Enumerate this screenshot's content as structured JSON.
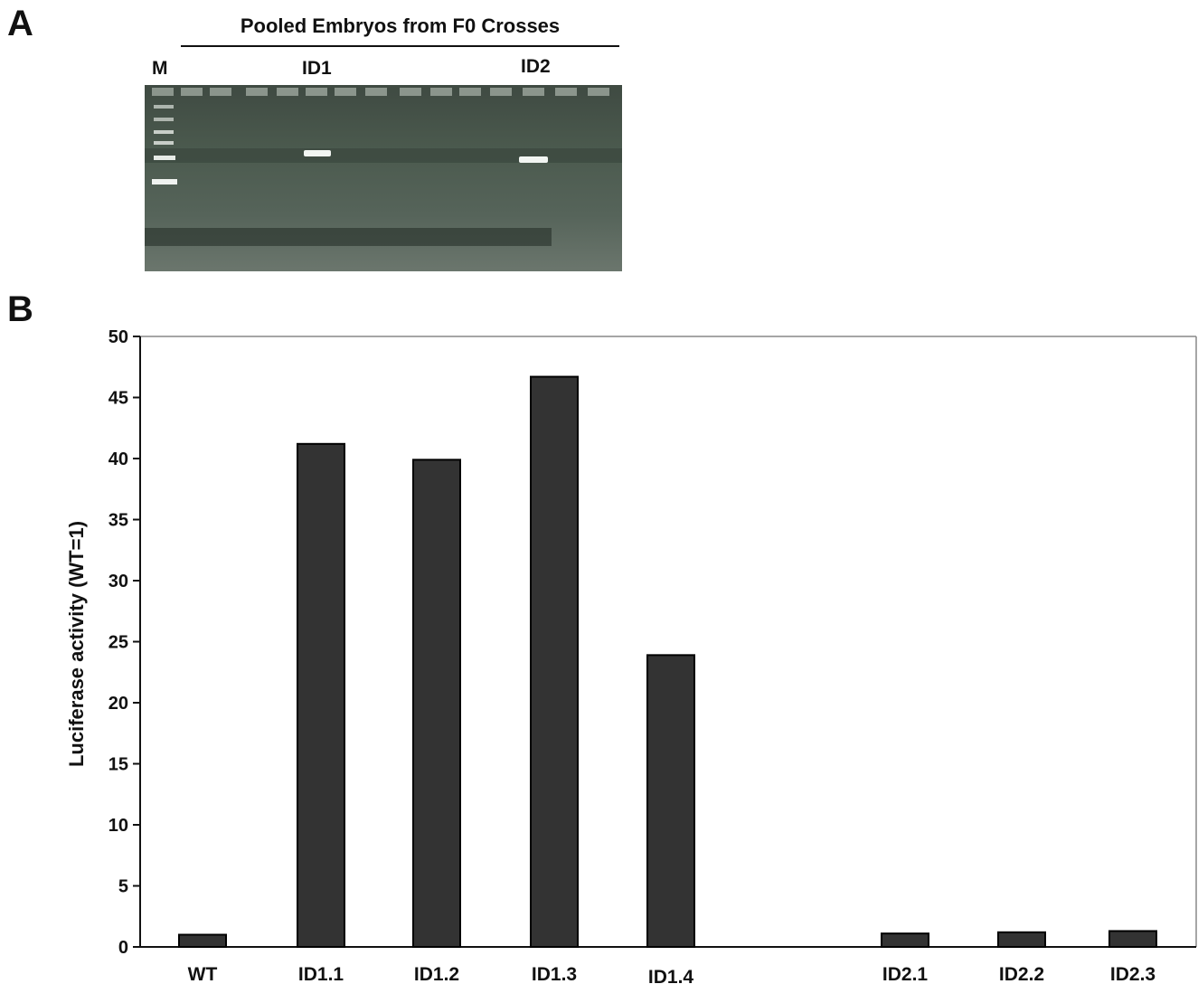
{
  "panel_a": {
    "letter": "A",
    "title": "Pooled Embryos from F0 Crosses",
    "lane_labels": {
      "marker": "M",
      "id1": "ID1",
      "id2": "ID2"
    }
  },
  "panel_b": {
    "letter": "B"
  },
  "chart_data": {
    "type": "bar",
    "title": "",
    "xlabel": "",
    "ylabel": "Luciferase activity (WT=1)",
    "categories": [
      "WT",
      "ID1.1",
      "ID1.2",
      "ID1.3",
      "ID1.4",
      "ID2.1",
      "ID2.2",
      "ID2.3"
    ],
    "values": [
      1,
      41.2,
      39.9,
      46.7,
      23.9,
      1.1,
      1.2,
      1.3
    ],
    "ylim": [
      0,
      50
    ],
    "yticks": [
      0,
      5,
      10,
      15,
      20,
      25,
      30,
      35,
      40,
      45,
      50
    ],
    "grid": false,
    "legend": "none",
    "bar_color": "#333333"
  }
}
